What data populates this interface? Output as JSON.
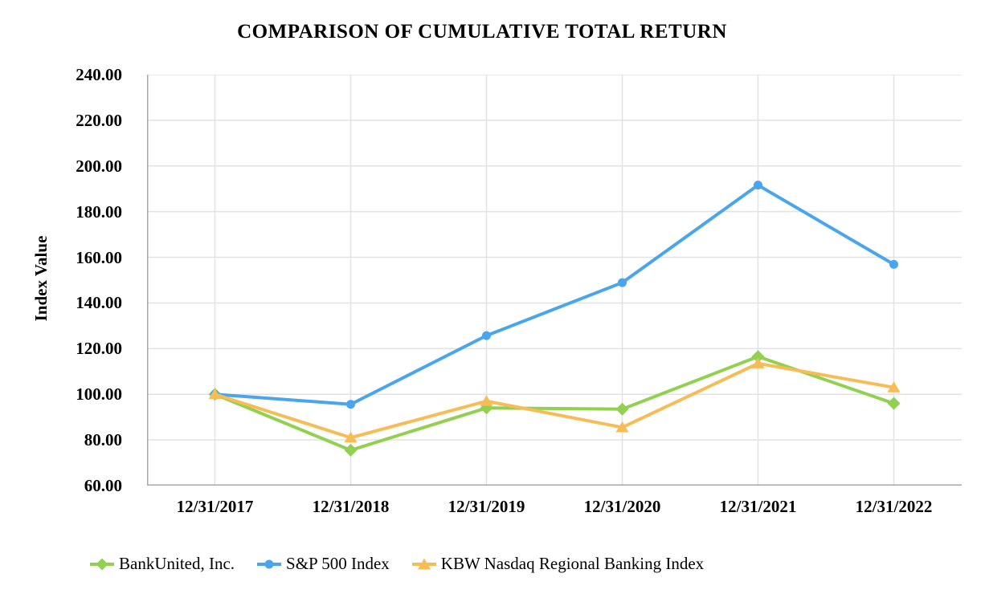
{
  "chart_data": {
    "type": "line",
    "title": "COMPARISON OF CUMULATIVE TOTAL RETURN",
    "ylabel": "Index Value",
    "xlabel": "",
    "categories": [
      "12/31/2017",
      "12/31/2018",
      "12/31/2019",
      "12/31/2020",
      "12/31/2021",
      "12/31/2022"
    ],
    "series": [
      {
        "name": "BankUnited, Inc.",
        "marker": "diamond",
        "color": "#92D050",
        "values": [
          100.0,
          75.5,
          94.0,
          93.5,
          116.5,
          96.0
        ]
      },
      {
        "name": "S&P 500 Index",
        "marker": "circle",
        "color": "#4AA5EC",
        "values": [
          100.0,
          95.6,
          125.7,
          148.9,
          191.6,
          156.9
        ]
      },
      {
        "name": "KBW Nasdaq Regional Banking Index",
        "marker": "triangle",
        "color": "#F7BC55",
        "values": [
          100.0,
          81.0,
          97.0,
          85.5,
          113.5,
          103.0
        ]
      }
    ],
    "ylim": [
      60,
      240
    ],
    "ytick_step": 20,
    "yticks": [
      "240.00",
      "220.00",
      "200.00",
      "180.00",
      "160.00",
      "140.00",
      "120.00",
      "100.00",
      "80.00",
      "60.00"
    ],
    "grid": "on",
    "legend_position": "bottom",
    "axis_color": "#A8A8A8",
    "grid_color": "#E2E2E2",
    "text_color": "#000000"
  }
}
